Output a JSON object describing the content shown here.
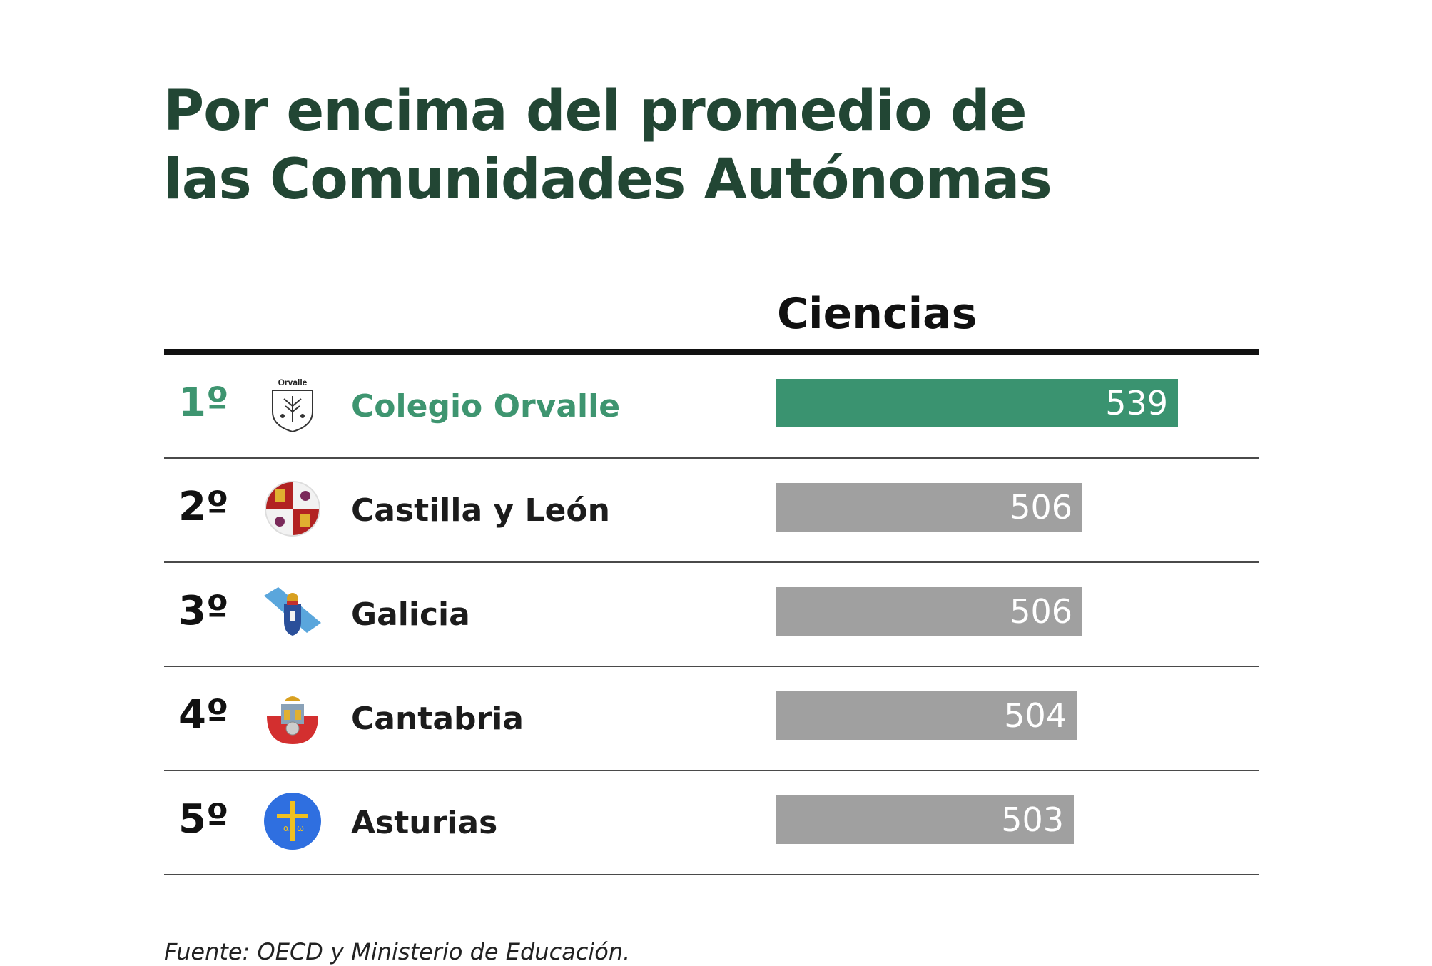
{
  "title_lines": [
    "Por encima del promedio de",
    "las Comunidades Autónomas"
  ],
  "source": "Fuente: OECD y Ministerio de Educación.",
  "colors": {
    "title": "#224634",
    "highlight": "#3a9370",
    "highlight_text": "#3e9570",
    "bar_default": "#a0a0a0"
  },
  "chart_data": {
    "type": "bar",
    "orientation": "horizontal",
    "title": "Por encima del promedio de las Comunidades Autónomas",
    "column_header": "Ciencias",
    "xlim": [
      400,
      600
    ],
    "rows": [
      {
        "rank": "1º",
        "name": "Colegio Orvalle",
        "value": 539,
        "emblem": "orvalle-shield-icon",
        "highlight": true
      },
      {
        "rank": "2º",
        "name": "Castilla y León",
        "value": 506,
        "emblem": "castilla-leon-crest-icon",
        "highlight": false
      },
      {
        "rank": "3º",
        "name": "Galicia",
        "value": 506,
        "emblem": "galicia-flag-icon",
        "highlight": false
      },
      {
        "rank": "4º",
        "name": "Cantabria",
        "value": 504,
        "emblem": "cantabria-crest-icon",
        "highlight": false
      },
      {
        "rank": "5º",
        "name": "Asturias",
        "value": 503,
        "emblem": "asturias-cross-icon",
        "highlight": false
      }
    ],
    "emblem_texts": {
      "orvalle-shield-icon": "Orvalle"
    }
  }
}
